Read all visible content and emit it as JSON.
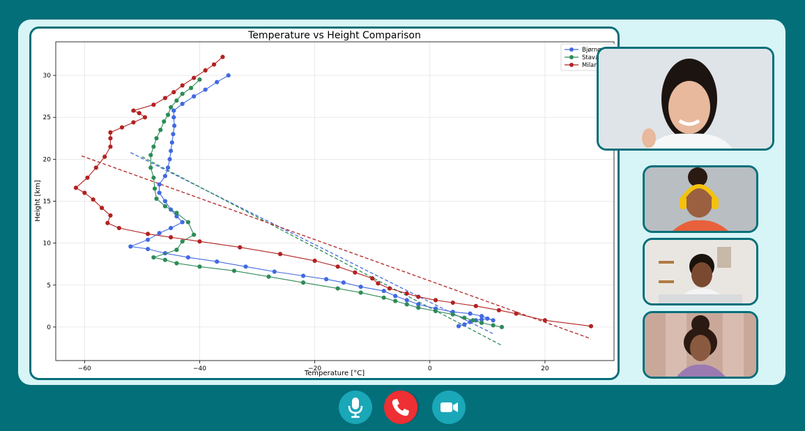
{
  "call": {
    "controls": {
      "mic_icon": "microphone-icon",
      "end_icon": "phone-hangup-icon",
      "camera_icon": "video-camera-icon"
    },
    "participants": [
      {
        "tile": "participant-main",
        "description_icon": "person-avatar"
      },
      {
        "tile": "participant-2",
        "description_icon": "person-avatar"
      },
      {
        "tile": "participant-3",
        "description_icon": "person-avatar"
      },
      {
        "tile": "participant-4",
        "description_icon": "person-avatar"
      }
    ]
  },
  "chart_data": {
    "type": "line",
    "title": "Temperature vs Height Comparison",
    "xlabel": "Temperature [°C]",
    "ylabel": "Height [km]",
    "xlim": [
      -65,
      32
    ],
    "ylim": [
      -4,
      34
    ],
    "xticks": [
      -60,
      -40,
      -20,
      0,
      20
    ],
    "yticks": [
      0,
      5,
      10,
      15,
      20,
      25,
      30
    ],
    "grid": true,
    "legend_position": "top-right",
    "legend": [
      "Bjørnøya",
      "Stavar",
      "Milano"
    ],
    "series": [
      {
        "name": "Bjørnøya",
        "color": "#4169e1",
        "points": [
          [
            5,
            0.1
          ],
          [
            6,
            0.3
          ],
          [
            7,
            0.6
          ],
          [
            8,
            0.8
          ],
          [
            9,
            0.9
          ],
          [
            10,
            1.0
          ],
          [
            11,
            0.8
          ],
          [
            9,
            1.3
          ],
          [
            7,
            1.6
          ],
          [
            4,
            1.8
          ],
          [
            1,
            2.2
          ],
          [
            -2,
            2.7
          ],
          [
            -4,
            3.2
          ],
          [
            -6,
            3.7
          ],
          [
            -8,
            4.3
          ],
          [
            -12,
            4.8
          ],
          [
            -15,
            5.3
          ],
          [
            -18,
            5.7
          ],
          [
            -22,
            6.1
          ],
          [
            -27,
            6.6
          ],
          [
            -32,
            7.2
          ],
          [
            -37,
            7.8
          ],
          [
            -42,
            8.3
          ],
          [
            -46,
            8.8
          ],
          [
            -49,
            9.3
          ],
          [
            -52,
            9.6
          ],
          [
            -49,
            10.4
          ],
          [
            -47,
            11.2
          ],
          [
            -45,
            11.8
          ],
          [
            -43,
            12.5
          ],
          [
            -44,
            13.2
          ],
          [
            -45,
            14.0
          ],
          [
            -46,
            15.0
          ],
          [
            -47,
            16.0
          ],
          [
            -47,
            17.0
          ],
          [
            -46,
            18.0
          ],
          [
            -45.5,
            19.0
          ],
          [
            -45.2,
            20.0
          ],
          [
            -45,
            21.0
          ],
          [
            -44.8,
            22.0
          ],
          [
            -44.6,
            23.0
          ],
          [
            -44.4,
            24.0
          ],
          [
            -44.5,
            25.0
          ],
          [
            -44.5,
            25.8
          ],
          [
            -43,
            26.6
          ],
          [
            -41,
            27.5
          ],
          [
            -39,
            28.3
          ],
          [
            -37,
            29.2
          ],
          [
            -35,
            30.0
          ]
        ]
      },
      {
        "name": "Stavar",
        "color": "#2e8b57",
        "points": [
          [
            12.5,
            0.0
          ],
          [
            11,
            0.2
          ],
          [
            9,
            0.5
          ],
          [
            7.5,
            0.8
          ],
          [
            6,
            1.1
          ],
          [
            4,
            1.5
          ],
          [
            1,
            1.9
          ],
          [
            -2,
            2.3
          ],
          [
            -4,
            2.7
          ],
          [
            -6,
            3.1
          ],
          [
            -8,
            3.5
          ],
          [
            -12,
            4.1
          ],
          [
            -16,
            4.6
          ],
          [
            -22,
            5.3
          ],
          [
            -28,
            6.0
          ],
          [
            -34,
            6.7
          ],
          [
            -40,
            7.2
          ],
          [
            -44,
            7.6
          ],
          [
            -46,
            8.0
          ],
          [
            -48,
            8.3
          ],
          [
            -44,
            9.2
          ],
          [
            -43,
            10.2
          ],
          [
            -41,
            11.0
          ],
          [
            -42,
            12.5
          ],
          [
            -44,
            13.6
          ],
          [
            -46,
            14.4
          ],
          [
            -47.5,
            15.3
          ],
          [
            -47.8,
            16.5
          ],
          [
            -48,
            17.8
          ],
          [
            -48.5,
            19.0
          ],
          [
            -48.5,
            20.5
          ],
          [
            -48,
            21.5
          ],
          [
            -47.5,
            22.5
          ],
          [
            -46.8,
            23.5
          ],
          [
            -46.2,
            24.5
          ],
          [
            -45.5,
            25.3
          ],
          [
            -45,
            26.2
          ],
          [
            -44,
            27.0
          ],
          [
            -43,
            27.8
          ],
          [
            -41.5,
            28.5
          ],
          [
            -40,
            29.5
          ]
        ]
      },
      {
        "name": "Milano",
        "color": "#b22222",
        "points": [
          [
            28,
            0.1
          ],
          [
            20,
            0.8
          ],
          [
            15,
            1.6
          ],
          [
            12,
            2.0
          ],
          [
            8,
            2.5
          ],
          [
            4,
            2.9
          ],
          [
            1,
            3.2
          ],
          [
            -2,
            3.6
          ],
          [
            -4,
            4.0
          ],
          [
            -7,
            4.6
          ],
          [
            -9,
            5.2
          ],
          [
            -10,
            5.8
          ],
          [
            -13,
            6.5
          ],
          [
            -16,
            7.2
          ],
          [
            -20,
            7.9
          ],
          [
            -26,
            8.7
          ],
          [
            -33,
            9.5
          ],
          [
            -40,
            10.2
          ],
          [
            -45,
            10.7
          ],
          [
            -49,
            11.1
          ],
          [
            -54,
            11.8
          ],
          [
            -56,
            12.4
          ],
          [
            -55.5,
            13.3
          ],
          [
            -57,
            14.2
          ],
          [
            -58.5,
            15.2
          ],
          [
            -60,
            16.0
          ],
          [
            -61.5,
            16.6
          ],
          [
            -59.5,
            17.8
          ],
          [
            -58,
            19.0
          ],
          [
            -56.5,
            20.3
          ],
          [
            -55.5,
            21.5
          ],
          [
            -55.5,
            22.5
          ],
          [
            -55.5,
            23.2
          ],
          [
            -53.5,
            23.8
          ],
          [
            -51.5,
            24.4
          ],
          [
            -49.5,
            25.0
          ],
          [
            -50.5,
            25.5
          ],
          [
            -51.5,
            25.8
          ],
          [
            -48,
            26.5
          ],
          [
            -46,
            27.3
          ],
          [
            -44.5,
            28.0
          ],
          [
            -43,
            28.8
          ],
          [
            -41,
            29.7
          ],
          [
            -39,
            30.6
          ],
          [
            -37.5,
            31.3
          ],
          [
            -36,
            32.2
          ]
        ]
      }
    ],
    "trend_lines": [
      {
        "series": "Bjørnøya",
        "color": "#4169e1",
        "from": [
          -52,
          20.8
        ],
        "to": [
          11,
          -0.8
        ]
      },
      {
        "series": "Stavar",
        "color": "#2e8b57",
        "from": [
          -50,
          20.3
        ],
        "to": [
          12.5,
          -2.2
        ]
      },
      {
        "series": "Milano",
        "color": "#b22222",
        "from": [
          -60.5,
          20.4
        ],
        "to": [
          28,
          -1.4
        ]
      }
    ]
  }
}
